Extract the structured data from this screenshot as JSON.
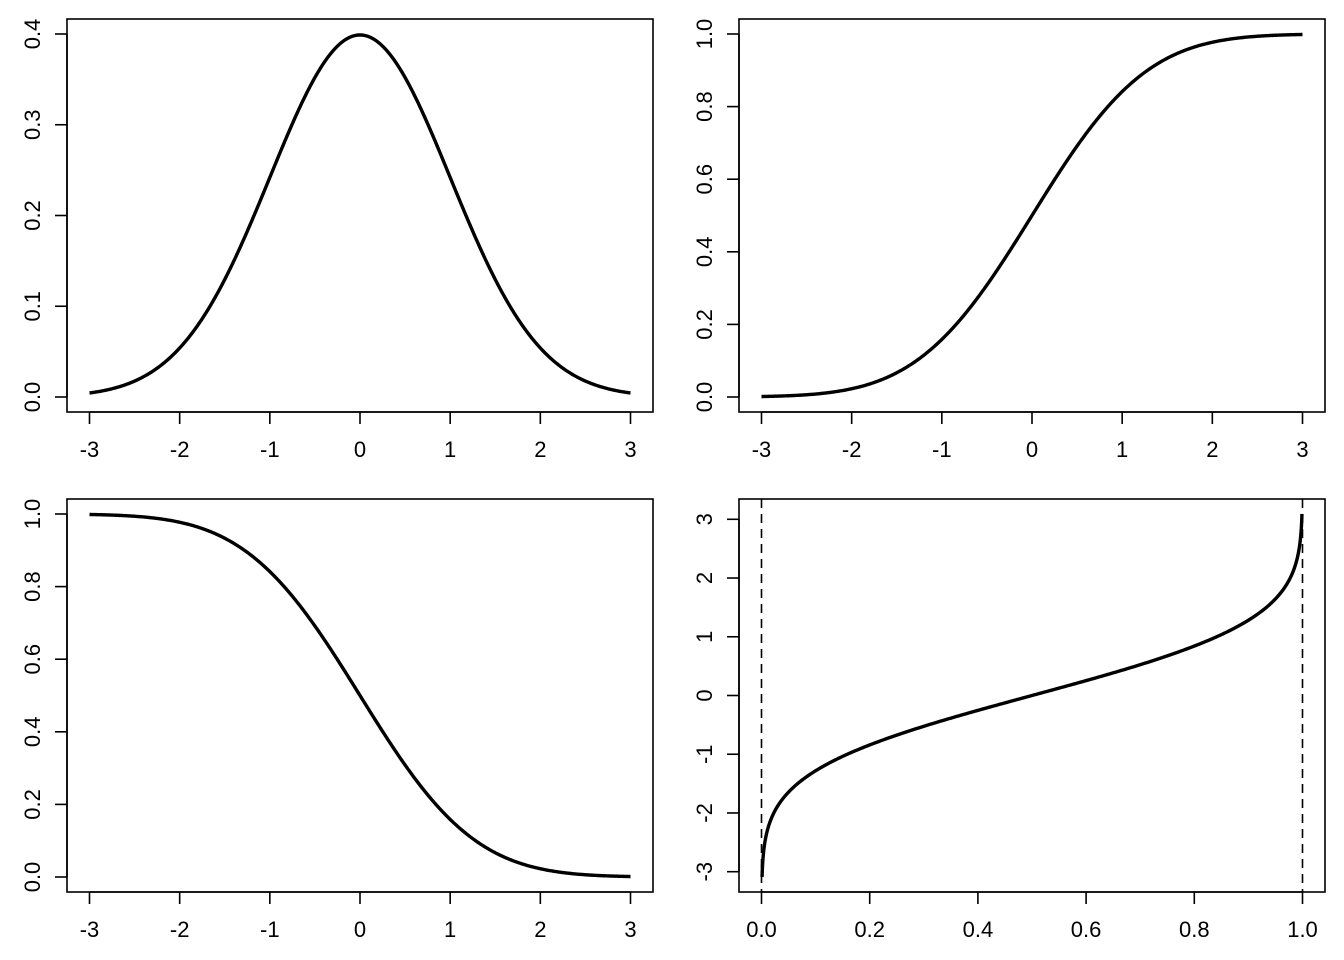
{
  "figure": {
    "background": "#ffffff",
    "line_color": "#000000"
  },
  "chart_data": [
    {
      "type": "line",
      "function": "standard normal density",
      "x": [
        -3.0,
        -2.5,
        -2.0,
        -1.5,
        -1.0,
        -0.5,
        0.0,
        0.5,
        1.0,
        1.5,
        2.0,
        2.5,
        3.0
      ],
      "y": [
        0.0044,
        0.0175,
        0.054,
        0.1295,
        0.242,
        0.3521,
        0.3989,
        0.3521,
        0.242,
        0.1295,
        0.054,
        0.0175,
        0.0044
      ],
      "xlim": [
        -3,
        3
      ],
      "ylim": [
        0,
        0.4
      ],
      "xticks": [
        "-3",
        "-2",
        "-1",
        "0",
        "1",
        "2",
        "3"
      ],
      "yticks": [
        "0.0",
        "0.1",
        "0.2",
        "0.3",
        "0.4"
      ],
      "title": "",
      "xlabel": "",
      "ylabel": ""
    },
    {
      "type": "line",
      "function": "standard normal CDF",
      "x": [
        -3.0,
        -2.5,
        -2.0,
        -1.5,
        -1.0,
        -0.5,
        0.0,
        0.5,
        1.0,
        1.5,
        2.0,
        2.5,
        3.0
      ],
      "y": [
        0.0013,
        0.0062,
        0.0228,
        0.0668,
        0.1587,
        0.3085,
        0.5,
        0.6915,
        0.8413,
        0.9332,
        0.9772,
        0.9938,
        0.9987
      ],
      "xlim": [
        -3,
        3
      ],
      "ylim": [
        0,
        1
      ],
      "xticks": [
        "-3",
        "-2",
        "-1",
        "0",
        "1",
        "2",
        "3"
      ],
      "yticks": [
        "0.0",
        "0.2",
        "0.4",
        "0.6",
        "0.8",
        "1.0"
      ],
      "title": "",
      "xlabel": "",
      "ylabel": ""
    },
    {
      "type": "line",
      "function": "standard normal survival function",
      "x": [
        -3.0,
        -2.5,
        -2.0,
        -1.5,
        -1.0,
        -0.5,
        0.0,
        0.5,
        1.0,
        1.5,
        2.0,
        2.5,
        3.0
      ],
      "y": [
        0.9987,
        0.9938,
        0.9772,
        0.9332,
        0.8413,
        0.6915,
        0.5,
        0.3085,
        0.1587,
        0.0668,
        0.0228,
        0.0062,
        0.0013
      ],
      "xlim": [
        -3,
        3
      ],
      "ylim": [
        0,
        1
      ],
      "xticks": [
        "-3",
        "-2",
        "-1",
        "0",
        "1",
        "2",
        "3"
      ],
      "yticks": [
        "0.0",
        "0.2",
        "0.4",
        "0.6",
        "0.8",
        "1.0"
      ],
      "title": "",
      "xlabel": "",
      "ylabel": ""
    },
    {
      "type": "line",
      "function": "standard normal quantile function",
      "x": [
        0.001,
        0.01,
        0.05,
        0.1,
        0.2,
        0.3,
        0.4,
        0.5,
        0.6,
        0.7,
        0.8,
        0.9,
        0.95,
        0.99,
        0.999
      ],
      "y": [
        -3.09,
        -2.326,
        -1.645,
        -1.282,
        -0.842,
        -0.524,
        -0.253,
        0.0,
        0.253,
        0.524,
        0.842,
        1.282,
        1.645,
        2.326,
        3.09
      ],
      "reference_lines": {
        "vertical_dashed_at_x": [
          0,
          1
        ]
      },
      "xlim": [
        0,
        1
      ],
      "ylim": [
        -3.09,
        3.09
      ],
      "xticks": [
        "0.0",
        "0.2",
        "0.4",
        "0.6",
        "0.8",
        "1.0"
      ],
      "yticks": [
        "-3",
        "-2",
        "-1",
        "0",
        "1",
        "2",
        "3"
      ],
      "title": "",
      "xlabel": "",
      "ylabel": ""
    }
  ]
}
